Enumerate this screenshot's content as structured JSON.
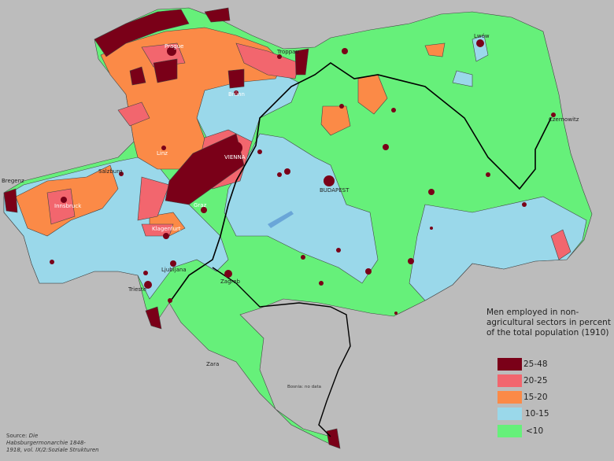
{
  "legend": {
    "title": "Men employed in non-agricultural sectors in percent of the total population (1910)",
    "items": [
      {
        "label": "25-48",
        "color": "#7a0018"
      },
      {
        "label": "20-25",
        "color": "#f2666e"
      },
      {
        "label": "15-20",
        "color": "#fb8a47"
      },
      {
        "label": "10-15",
        "color": "#9ad8ea"
      },
      {
        "label": "<10",
        "color": "#66f07a"
      }
    ]
  },
  "cities": {
    "prague": "Prague",
    "troppau": "Troppau",
    "lwow": "Lwów",
    "brunn": "Brünn",
    "czernowitz": "Czernowitz",
    "vienna": "VIENNA",
    "linz": "Linz",
    "salzburg": "Salzburg",
    "budapest": "BUDAPEST",
    "bregenz": "Bregenz",
    "innsbruck": "Innsbruck",
    "graz": "Graz",
    "klagenfurt": "Klagenfurt",
    "ljubljana": "Ljubljana",
    "zagreb": "Zagreb",
    "trieste": "Trieste",
    "zara": "Zara"
  },
  "bosnia_note": "Bosnia: no data",
  "source": {
    "prefix": "Source: ",
    "title": "Die Habsburgermonarchie 1848-1918, vol. IX/2:Soziale Strukturen"
  }
}
